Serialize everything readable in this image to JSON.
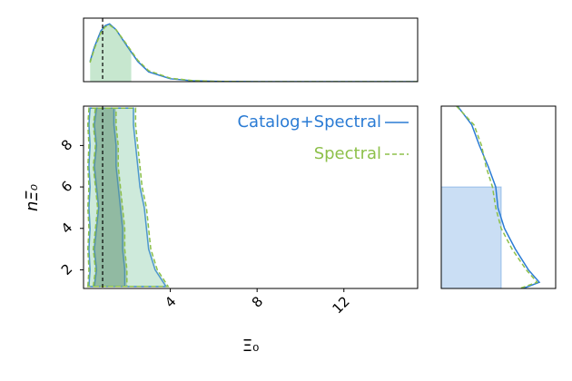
{
  "chart_data": {
    "type": "corner",
    "xlabel": "Ξ₀",
    "ylabel": "nΞ₀",
    "truth": 0.88,
    "xlim": [
      0,
      15.4
    ],
    "ylim": [
      1.1,
      9.9
    ],
    "xticks": [
      4,
      8,
      12
    ],
    "yticks": [
      2,
      4,
      6,
      8
    ],
    "legend": "upper right",
    "levels": [
      1.2,
      2,
      3,
      4,
      5,
      6,
      7,
      8,
      9,
      9.8
    ],
    "x_grid": [
      0.3,
      0.5,
      0.8,
      1.0,
      1.2,
      1.5,
      2,
      2.5,
      3,
      4,
      5,
      6,
      8,
      15.4
    ],
    "n_grid": [
      9.9,
      9,
      8,
      7,
      6,
      5,
      4,
      3,
      2,
      1.4,
      1.1
    ],
    "density_lim": [
      0,
      1.1
    ],
    "n_density_lim": [
      0,
      1.05
    ],
    "x_fill_range": [
      0.3,
      2.2
    ],
    "n_fill_range": [
      1.1,
      6
    ],
    "n_fill_level": 0.55,
    "series": [
      {
        "name": "Catalog+Spectral",
        "color": "#2a7bd4",
        "dashed": false,
        "outer_left": [
          0.25,
          0.3,
          0.25,
          0.3,
          0.25,
          0.3,
          0.25,
          0.3,
          0.25,
          0.3
        ],
        "outer_right": [
          3.8,
          3.3,
          3.0,
          2.9,
          2.8,
          2.6,
          2.5,
          2.4,
          2.3,
          2.3
        ],
        "inner_left": [
          0.5,
          0.6,
          0.5,
          0.6,
          0.7,
          0.6,
          0.5,
          0.6,
          0.5,
          0.6
        ],
        "inner_right": [
          1.9,
          1.9,
          1.8,
          1.8,
          1.7,
          1.6,
          1.5,
          1.5,
          1.4,
          1.4
        ],
        "x_density": [
          0.35,
          0.6,
          0.88,
          0.97,
          1.0,
          0.9,
          0.62,
          0.35,
          0.17,
          0.05,
          0.015,
          0.005,
          0,
          0
        ],
        "n_density": [
          0.15,
          0.28,
          0.35,
          0.43,
          0.5,
          0.52,
          0.58,
          0.68,
          0.8,
          0.9,
          0.75
        ]
      },
      {
        "name": "Spectral",
        "color": "#8dc04a",
        "dashed": true,
        "outer_left": [
          0.2,
          0.25,
          0.2,
          0.25,
          0.2,
          0.25,
          0.2,
          0.25,
          0.2,
          0.25
        ],
        "outer_right": [
          3.9,
          3.4,
          3.1,
          3.0,
          2.9,
          2.7,
          2.6,
          2.5,
          2.4,
          2.4
        ],
        "inner_left": [
          0.45,
          0.55,
          0.45,
          0.55,
          0.65,
          0.55,
          0.45,
          0.55,
          0.45,
          0.55
        ],
        "inner_right": [
          2.0,
          2.0,
          1.9,
          1.9,
          1.8,
          1.7,
          1.6,
          1.6,
          1.5,
          1.5
        ],
        "x_density": [
          0.33,
          0.57,
          0.85,
          0.95,
          0.98,
          0.9,
          0.64,
          0.37,
          0.19,
          0.06,
          0.02,
          0.006,
          0,
          0
        ],
        "n_density": [
          0.14,
          0.3,
          0.37,
          0.41,
          0.47,
          0.5,
          0.55,
          0.65,
          0.78,
          0.88,
          0.72
        ]
      }
    ]
  }
}
